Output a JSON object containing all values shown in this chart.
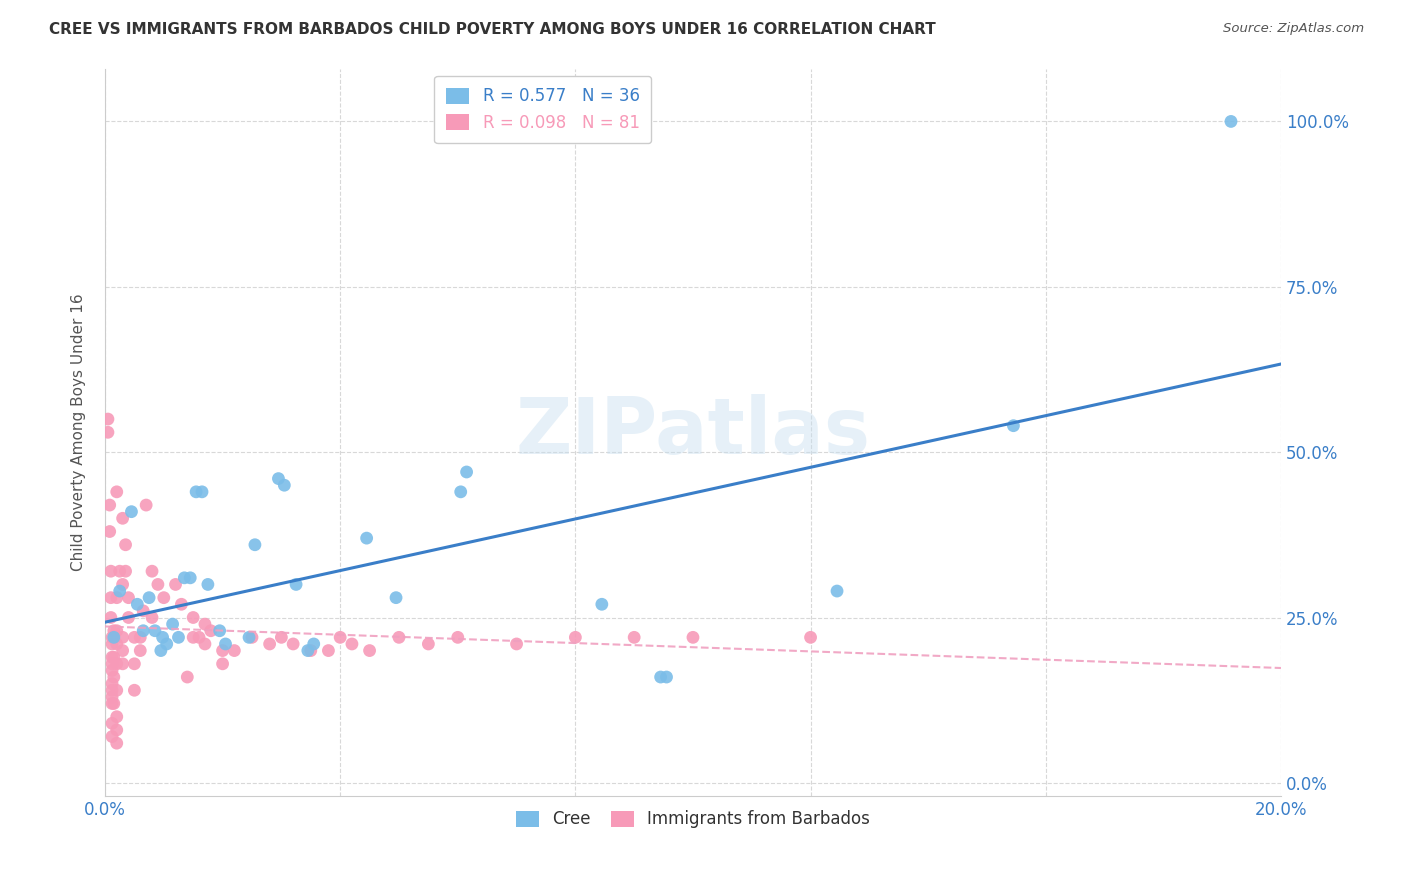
{
  "title": "CREE VS IMMIGRANTS FROM BARBADOS CHILD POVERTY AMONG BOYS UNDER 16 CORRELATION CHART",
  "source": "Source: ZipAtlas.com",
  "ylabel": "Child Poverty Among Boys Under 16",
  "ytick_values": [
    0,
    25,
    50,
    75,
    100
  ],
  "xlim": [
    0,
    20
  ],
  "ylim": [
    -2,
    108
  ],
  "watermark": "ZIPatlas",
  "legend_cree_R": "0.577",
  "legend_cree_N": "36",
  "legend_barb_R": "0.098",
  "legend_barb_N": "81",
  "cree_color": "#7bbde8",
  "barb_color": "#f79ab8",
  "cree_line_color": "#3a7ec8",
  "barb_line_color": "#f0a0c0",
  "cree_scatter": [
    [
      0.15,
      22
    ],
    [
      0.25,
      29
    ],
    [
      0.45,
      41
    ],
    [
      0.55,
      27
    ],
    [
      0.65,
      23
    ],
    [
      0.75,
      28
    ],
    [
      0.85,
      23
    ],
    [
      0.95,
      20
    ],
    [
      0.98,
      22
    ],
    [
      1.05,
      21
    ],
    [
      1.15,
      24
    ],
    [
      1.25,
      22
    ],
    [
      1.35,
      31
    ],
    [
      1.45,
      31
    ],
    [
      1.55,
      44
    ],
    [
      1.65,
      44
    ],
    [
      1.75,
      30
    ],
    [
      1.95,
      23
    ],
    [
      2.05,
      21
    ],
    [
      2.45,
      22
    ],
    [
      2.55,
      36
    ],
    [
      2.95,
      46
    ],
    [
      3.05,
      45
    ],
    [
      3.25,
      30
    ],
    [
      3.45,
      20
    ],
    [
      3.55,
      21
    ],
    [
      4.45,
      37
    ],
    [
      4.95,
      28
    ],
    [
      6.05,
      44
    ],
    [
      6.15,
      47
    ],
    [
      8.45,
      27
    ],
    [
      9.45,
      16
    ],
    [
      9.55,
      16
    ],
    [
      12.45,
      29
    ],
    [
      15.45,
      54
    ],
    [
      19.15,
      100
    ]
  ],
  "barb_scatter": [
    [
      0.05,
      55
    ],
    [
      0.05,
      53
    ],
    [
      0.08,
      42
    ],
    [
      0.08,
      38
    ],
    [
      0.1,
      32
    ],
    [
      0.1,
      28
    ],
    [
      0.1,
      25
    ],
    [
      0.12,
      22
    ],
    [
      0.12,
      21
    ],
    [
      0.12,
      19
    ],
    [
      0.12,
      18
    ],
    [
      0.12,
      17
    ],
    [
      0.12,
      15
    ],
    [
      0.12,
      14
    ],
    [
      0.12,
      13
    ],
    [
      0.12,
      12
    ],
    [
      0.12,
      9
    ],
    [
      0.12,
      7
    ],
    [
      0.15,
      23
    ],
    [
      0.15,
      19
    ],
    [
      0.15,
      16
    ],
    [
      0.15,
      12
    ],
    [
      0.2,
      44
    ],
    [
      0.2,
      28
    ],
    [
      0.2,
      23
    ],
    [
      0.2,
      21
    ],
    [
      0.2,
      18
    ],
    [
      0.2,
      14
    ],
    [
      0.2,
      10
    ],
    [
      0.2,
      8
    ],
    [
      0.2,
      6
    ],
    [
      0.25,
      32
    ],
    [
      0.3,
      40
    ],
    [
      0.3,
      30
    ],
    [
      0.3,
      22
    ],
    [
      0.3,
      20
    ],
    [
      0.3,
      18
    ],
    [
      0.35,
      36
    ],
    [
      0.35,
      32
    ],
    [
      0.4,
      28
    ],
    [
      0.4,
      25
    ],
    [
      0.5,
      22
    ],
    [
      0.5,
      18
    ],
    [
      0.5,
      14
    ],
    [
      0.6,
      22
    ],
    [
      0.6,
      20
    ],
    [
      0.65,
      26
    ],
    [
      0.7,
      42
    ],
    [
      0.8,
      32
    ],
    [
      0.8,
      25
    ],
    [
      0.9,
      30
    ],
    [
      1.0,
      28
    ],
    [
      1.2,
      30
    ],
    [
      1.3,
      27
    ],
    [
      1.4,
      16
    ],
    [
      1.5,
      25
    ],
    [
      1.5,
      22
    ],
    [
      1.6,
      22
    ],
    [
      1.7,
      24
    ],
    [
      1.7,
      21
    ],
    [
      1.8,
      23
    ],
    [
      2.0,
      20
    ],
    [
      2.0,
      18
    ],
    [
      2.2,
      20
    ],
    [
      2.5,
      22
    ],
    [
      2.8,
      21
    ],
    [
      3.0,
      22
    ],
    [
      3.2,
      21
    ],
    [
      3.5,
      20
    ],
    [
      3.8,
      20
    ],
    [
      4.0,
      22
    ],
    [
      4.2,
      21
    ],
    [
      4.5,
      20
    ],
    [
      5.0,
      22
    ],
    [
      5.5,
      21
    ],
    [
      6.0,
      22
    ],
    [
      7.0,
      21
    ],
    [
      8.0,
      22
    ],
    [
      9.0,
      22
    ],
    [
      10.0,
      22
    ],
    [
      12.0,
      22
    ]
  ]
}
